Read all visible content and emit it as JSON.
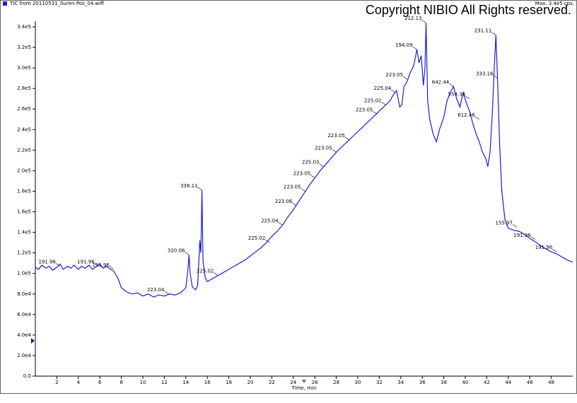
{
  "chart_data": {
    "type": "line",
    "title": "Copyright NIBIO All Rights reserved.",
    "subtitle": "Max. 3.4e5 cps.",
    "x_label": "Time, min",
    "series": [
      {
        "name": "TIC from 20110531_0uren-Pos_04.wiff",
        "color": "#1c1cd4",
        "values": [
          106000,
          104000,
          108000,
          105000,
          107000,
          103000,
          106000,
          109000,
          104000,
          107000,
          105000,
          108000,
          104000,
          107000,
          105000,
          108000,
          104000,
          106000,
          109000,
          105000,
          107000,
          104000,
          102000,
          95000,
          86000,
          82000,
          80000,
          81000,
          78000,
          80000,
          77000,
          79000,
          78000,
          80000,
          79000,
          81000,
          84000,
          86000,
          104000,
          118000,
          100000,
          87000,
          84000,
          88000,
          132000,
          120000,
          181000,
          112000,
          96000,
          92000,
          95000,
          98000,
          101000,
          104000,
          107000,
          110000,
          113000,
          117000,
          121000,
          125000,
          130000,
          136000,
          141000,
          147000,
          155000,
          162000,
          170000,
          178000,
          186000,
          193000,
          200000,
          206000,
          212000,
          218000,
          223000,
          228000,
          233000,
          238000,
          243000,
          248000,
          253000,
          258000,
          263000,
          268000,
          274000,
          278000,
          262000,
          264000,
          282000,
          287000,
          296000,
          302000,
          318000,
          305000,
          312000,
          283000,
          300000,
          344000,
          268000,
          250000,
          236000,
          228000,
          240000,
          252000,
          268000,
          276000,
          282000,
          270000,
          262000,
          276000,
          266000,
          258000,
          246000,
          236000,
          228000,
          218000,
          212000,
          204000,
          218000,
          252000,
          300000,
          332000,
          290000,
          225000,
          180000,
          152000,
          144000,
          142000,
          141000,
          138000,
          134000,
          131000,
          127000,
          124000,
          121000,
          119000,
          116000,
          113000,
          111000
        ]
      }
    ],
    "x": [
      0,
      0.3,
      0.6,
      1,
      1.3,
      1.6,
      2,
      2.3,
      2.6,
      3,
      3.3,
      3.6,
      4,
      4.3,
      4.6,
      5,
      5.3,
      5.6,
      6,
      6.3,
      6.6,
      7,
      7.3,
      7.7,
      8,
      8.5,
      9,
      9.5,
      10,
      10.5,
      11,
      11.5,
      12,
      12.5,
      13,
      13.5,
      13.8,
      14,
      14.2,
      14.3,
      14.4,
      14.6,
      14.9,
      15.1,
      15.3,
      15.4,
      15.5,
      15.6,
      15.8,
      16,
      16.5,
      17,
      17.5,
      18,
      18.5,
      19,
      19.5,
      20,
      20.5,
      21,
      21.5,
      22,
      22.5,
      23,
      23.5,
      24,
      24.5,
      25,
      25.5,
      26,
      26.5,
      27,
      27.5,
      28,
      28.5,
      29,
      29.5,
      30,
      30.5,
      31,
      31.5,
      32,
      32.5,
      33,
      33.3,
      33.6,
      33.9,
      34.1,
      34.3,
      34.6,
      34.9,
      35.2,
      35.5,
      35.7,
      35.9,
      36.1,
      36.25,
      36.35,
      36.5,
      36.7,
      37,
      37.3,
      37.6,
      38,
      38.3,
      38.6,
      38.9,
      39.2,
      39.5,
      39.8,
      40.1,
      40.4,
      40.7,
      41,
      41.3,
      41.6,
      41.9,
      42.1,
      42.3,
      42.5,
      42.7,
      42.85,
      43,
      43.2,
      43.4,
      43.7,
      44,
      44.5,
      45,
      45.5,
      46,
      46.5,
      47,
      47.5,
      48,
      48.5,
      49,
      49.5,
      50
    ],
    "xlim": [
      0,
      50
    ],
    "xticks": [
      2,
      4,
      6,
      8,
      10,
      12,
      14,
      16,
      18,
      20,
      22,
      24,
      26,
      28,
      30,
      32,
      34,
      36,
      38,
      40,
      42,
      44,
      46,
      48
    ],
    "ylim": [
      0,
      340000
    ],
    "yticks": [
      {
        "value": 0,
        "label": "0.0"
      },
      {
        "value": 20000,
        "label": "2.0e4"
      },
      {
        "value": 40000,
        "label": "4.0e4"
      },
      {
        "value": 60000,
        "label": "6.0e4"
      },
      {
        "value": 80000,
        "label": "8.0e4"
      },
      {
        "value": 100000,
        "label": "1.0e5"
      },
      {
        "value": 120000,
        "label": "1.2e5"
      },
      {
        "value": 140000,
        "label": "1.4e5"
      },
      {
        "value": 160000,
        "label": "1.6e5"
      },
      {
        "value": 180000,
        "label": "1.8e5"
      },
      {
        "value": 200000,
        "label": "2.0e5"
      },
      {
        "value": 220000,
        "label": "2.2e5"
      },
      {
        "value": 240000,
        "label": "2.4e5"
      },
      {
        "value": 260000,
        "label": "2.6e5"
      },
      {
        "value": 280000,
        "label": "2.8e5"
      },
      {
        "value": 300000,
        "label": "3.0e5"
      },
      {
        "value": 320000,
        "label": "3.2e5"
      },
      {
        "value": 340000,
        "label": "3.4e5"
      }
    ],
    "annotations": [
      {
        "text": "191.96",
        "x": 2.3,
        "y": 107000
      },
      {
        "text": "191.96",
        "x": 5.9,
        "y": 107000
      },
      {
        "text": "191.96",
        "x": 7.3,
        "y": 104000
      },
      {
        "text": "223.04",
        "x": 12.4,
        "y": 80000
      },
      {
        "text": "320.06",
        "x": 14.3,
        "y": 118000
      },
      {
        "text": "336.11",
        "x": 15.5,
        "y": 181000
      },
      {
        "text": "225.02",
        "x": 17,
        "y": 98000
      },
      {
        "text": "225.02",
        "x": 21.8,
        "y": 130000
      },
      {
        "text": "225.04",
        "x": 23,
        "y": 147000
      },
      {
        "text": "223.06",
        "x": 24.3,
        "y": 166000
      },
      {
        "text": "223.05",
        "x": 25.1,
        "y": 180000
      },
      {
        "text": "225.03",
        "x": 26.8,
        "y": 204000
      },
      {
        "text": "223.05",
        "x": 26,
        "y": 193000
      },
      {
        "text": "223.05",
        "x": 28,
        "y": 218000
      },
      {
        "text": "223.05",
        "x": 29.2,
        "y": 230000
      },
      {
        "text": "223.05",
        "x": 31.8,
        "y": 255000
      },
      {
        "text": "225.02",
        "x": 32.6,
        "y": 264000
      },
      {
        "text": "225.04",
        "x": 33.5,
        "y": 276000
      },
      {
        "text": "223.05",
        "x": 34.6,
        "y": 289000
      },
      {
        "text": "194.09",
        "x": 35.5,
        "y": 318000
      },
      {
        "text": "212.13",
        "x": 36.35,
        "y": 344000
      },
      {
        "text": "642.44",
        "x": 38.9,
        "y": 282000
      },
      {
        "text": "554.38",
        "x": 40.4,
        "y": 270000
      },
      {
        "text": "612.46",
        "x": 41.3,
        "y": 250000
      },
      {
        "text": "231.11",
        "x": 42.85,
        "y": 332000
      },
      {
        "text": "333.16",
        "x": 43,
        "y": 290000
      },
      {
        "text": "155.97",
        "x": 44.8,
        "y": 145000
      },
      {
        "text": "191.96",
        "x": 46.5,
        "y": 133000
      },
      {
        "text": "191.96",
        "x": 48.5,
        "y": 121000
      }
    ]
  }
}
